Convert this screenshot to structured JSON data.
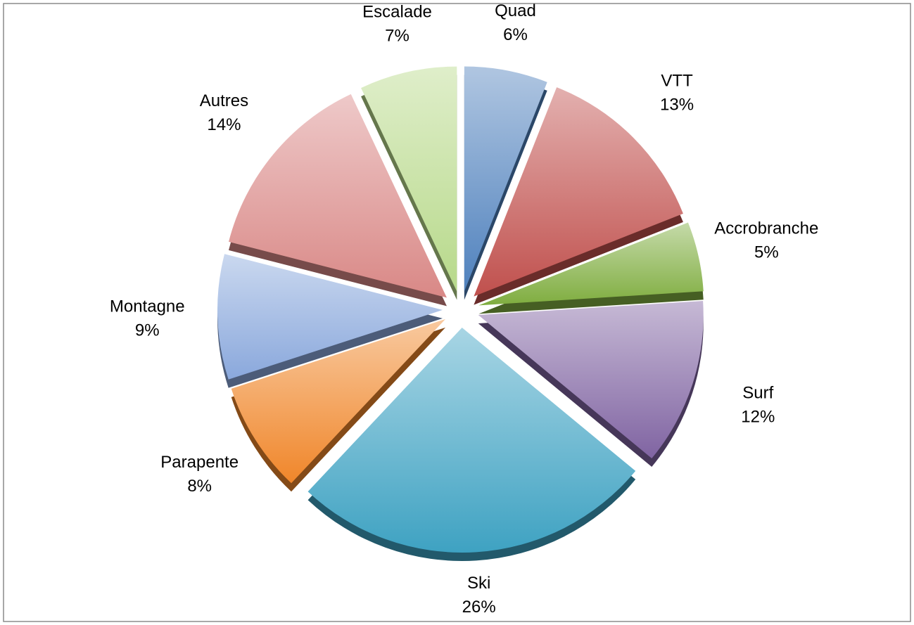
{
  "chart_data": {
    "type": "pie",
    "categories": [
      "Quad",
      "VTT",
      "Accrobranche",
      "Surf",
      "Ski",
      "Parapente",
      "Montagne",
      "Autres",
      "Escalade"
    ],
    "values": [
      6,
      13,
      5,
      12,
      26,
      8,
      9,
      14,
      7
    ],
    "value_labels": [
      "6%",
      "13%",
      "5%",
      "12%",
      "26%",
      "8%",
      "9%",
      "14%",
      "7%"
    ],
    "colors": [
      "#4f81bd",
      "#c0504d",
      "#7fad3f",
      "#8064a2",
      "#3ea2c2",
      "#f0862a",
      "#8aa8dc",
      "#d98886",
      "#b7d98a"
    ]
  }
}
